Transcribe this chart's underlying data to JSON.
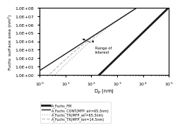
{
  "title": "",
  "xlabel": "D$_p$ (nm)",
  "ylabel": "Fuchs surface area (nm$^2$)",
  "xlim": [
    1,
    100000
  ],
  "ylim": [
    1.0,
    100000000.0
  ],
  "legend_entries": [
    "A_Fuchs_FM",
    "A_Fuchs_CONT(MFP_air=65.3nm)",
    "A_Fuchs_TR(MFP_air=65.3nm)",
    "A_Fuchs_TR(MFP_ion=14.5nm)"
  ],
  "lam_air": 65.3,
  "lam_ion": 14.5,
  "fm_color": "#1a1a1a",
  "cont_color": "#1a1a1a",
  "tr_air_color": "#b0b0b0",
  "tr_ion_color": "#c0c0c0",
  "fm_lw": 2.0,
  "cont_lw": 1.0,
  "tr_lw": 0.9,
  "annotation_text": "Range of\ninterest",
  "background_color": "#ffffff"
}
